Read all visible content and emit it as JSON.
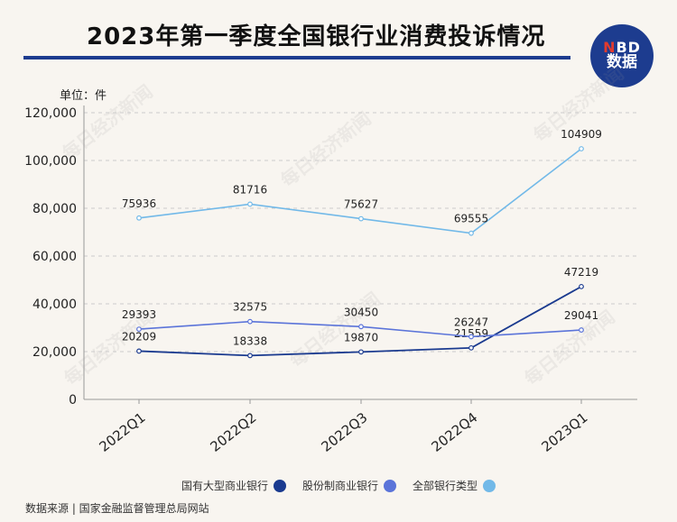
{
  "title": "2023年第一季度全国银行业消费投诉情况",
  "logo": {
    "line1_n": "N",
    "line1_bd": "BD",
    "line2": "数据"
  },
  "unit_label": "单位：件",
  "watermark": "每日经济新闻",
  "source": "数据来源 | 国家金融监督管理总局网站",
  "colors": {
    "series_large_state": "#1a3a8f",
    "series_joint_stock": "#5b74d9",
    "series_all": "#72b9e8",
    "axis": "#999999",
    "grid": "#cccccc"
  },
  "chart_data": {
    "type": "line",
    "categories": [
      "2022Q1",
      "2022Q2",
      "2022Q3",
      "2022Q4",
      "2023Q1"
    ],
    "ylim": [
      0,
      120000
    ],
    "yticks": [
      "0",
      "20,000",
      "40,000",
      "60,000",
      "80,000",
      "100,000",
      "120,000"
    ],
    "ytick_values": [
      0,
      20000,
      40000,
      60000,
      80000,
      100000,
      120000
    ],
    "grid": true,
    "legend_position": "bottom",
    "series": [
      {
        "name": "国有大型商业银行",
        "values": [
          20209,
          18338,
          19870,
          21559,
          47219
        ]
      },
      {
        "name": "股份制商业银行",
        "values": [
          29393,
          32575,
          30450,
          26247,
          29041
        ]
      },
      {
        "name": "全部银行类型",
        "values": [
          75936,
          81716,
          75627,
          69555,
          104909
        ]
      }
    ]
  }
}
